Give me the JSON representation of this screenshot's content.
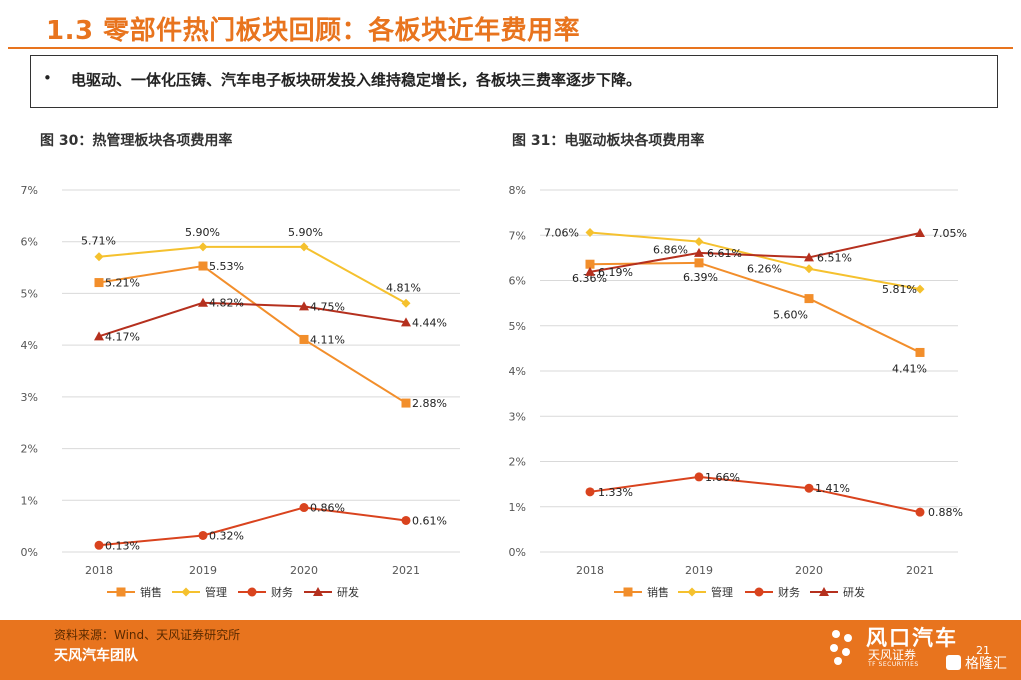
{
  "header": {
    "title": "1.3 零部件热门板块回顾：各板块近年费用率",
    "bullet": "•",
    "summary": "电驱动、一体化压铸、汽车电子板块研发投入维持稳定增长，各板块三费率逐步下降。"
  },
  "chart_data": [
    {
      "type": "line",
      "title": "图 30：热管理板块各项费用率",
      "categories": [
        "2018",
        "2019",
        "2020",
        "2021"
      ],
      "yticks": [
        "0%",
        "1%",
        "2%",
        "3%",
        "4%",
        "5%",
        "6%",
        "7%"
      ],
      "ylim": [
        0,
        7
      ],
      "grid": true,
      "legend_position": "bottom",
      "series": [
        {
          "name": "销售",
          "color": "#F28E2B",
          "marker": "square",
          "values": [
            5.21,
            5.53,
            4.11,
            2.88
          ],
          "labels": [
            "5.21%",
            "5.53%",
            "4.11%",
            "2.88%"
          ]
        },
        {
          "name": "管理",
          "color": "#F5C12E",
          "marker": "diamond",
          "values": [
            5.71,
            5.9,
            5.9,
            4.81
          ],
          "labels": [
            "5.71%",
            "5.90%",
            "5.90%",
            "4.81%"
          ]
        },
        {
          "name": "财务",
          "color": "#D9431E",
          "marker": "circle",
          "values": [
            0.13,
            0.32,
            0.86,
            0.61
          ],
          "labels": [
            "0.13%",
            "0.32%",
            "0.86%",
            "0.61%"
          ]
        },
        {
          "name": "研发",
          "color": "#B5301E",
          "marker": "triangle",
          "values": [
            4.17,
            4.82,
            4.75,
            4.44
          ],
          "labels": [
            "4.17%",
            "4.82%",
            "4.75%",
            "4.44%"
          ]
        }
      ]
    },
    {
      "type": "line",
      "title": "图 31：电驱动板块各项费用率",
      "categories": [
        "2018",
        "2019",
        "2020",
        "2021"
      ],
      "yticks": [
        "0%",
        "1%",
        "2%",
        "3%",
        "4%",
        "5%",
        "6%",
        "7%",
        "8%"
      ],
      "ylim": [
        0,
        8
      ],
      "grid": true,
      "legend_position": "bottom",
      "series": [
        {
          "name": "销售",
          "color": "#F28E2B",
          "marker": "square",
          "values": [
            6.36,
            6.39,
            5.6,
            4.41
          ],
          "labels": [
            "6.36%",
            "6.39%",
            "5.60%",
            "4.41%"
          ]
        },
        {
          "name": "管理",
          "color": "#F5C12E",
          "marker": "diamond",
          "values": [
            7.06,
            6.86,
            6.26,
            5.81
          ],
          "labels": [
            "7.06%",
            "6.86%",
            "6.26%",
            "5.81%"
          ]
        },
        {
          "name": "财务",
          "color": "#D9431E",
          "marker": "circle",
          "values": [
            1.33,
            1.66,
            1.41,
            0.88
          ],
          "labels": [
            "1.33%",
            "1.66%",
            "1.41%",
            "0.88%"
          ]
        },
        {
          "name": "研发",
          "color": "#B5301E",
          "marker": "triangle",
          "values": [
            6.19,
            6.61,
            6.51,
            7.05
          ],
          "labels": [
            "6.19%",
            "6.61%",
            "6.51%",
            "7.05%"
          ]
        }
      ]
    }
  ],
  "footer": {
    "source": "资料来源：Wind、天风证券研究所",
    "team": "天风汽车团队",
    "brand_name": "风口汽车",
    "brand_sub": "天风证券",
    "brand_en": "TF SECURITIES",
    "page_number": "21",
    "watermark": "格隆汇"
  },
  "colors": {
    "accent": "#E8741E",
    "footer_bg": "#E8741E"
  }
}
